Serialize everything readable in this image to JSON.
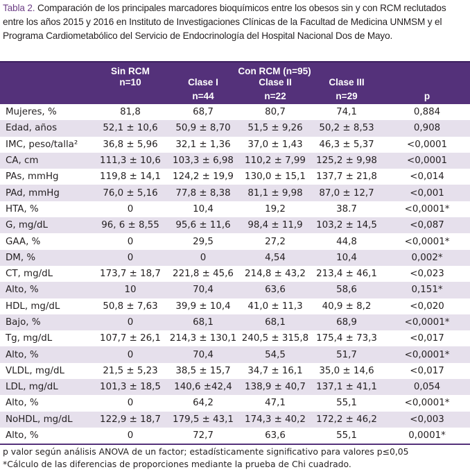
{
  "caption": {
    "label": "Tabla 2.",
    "text": " Comparación de los principales marcadores bioquímicos entre los obesos sin y con RCM reclutados entre los años 2015 y 2016 en Instituto de Investigaciones Clínicas de la Facultad de Medicina UNMSM y el Programa Cardiometabólico del Servicio de Endocrinología del Hospital Nacional Dos de Mayo."
  },
  "header": {
    "sin_rcm": "Sin RCM",
    "sin_rcm_n": "n=10",
    "con_rcm": "Con RCM (n=95)",
    "clase1": "Clase I",
    "clase1_n": "n=44",
    "clase2": "Clase II",
    "clase2_n": "n=22",
    "clase3": "Clase III",
    "clase3_n": "n=29",
    "p": "p"
  },
  "rows": [
    [
      "Mujeres, %",
      "81,8",
      "68,7",
      "80,7",
      "74,1",
      "0,884"
    ],
    [
      "Edad, años",
      "52,1 ± 10,6",
      "50,9 ± 8,70",
      "51,5 ± 9,26",
      "50,2 ± 8,53",
      "0,908"
    ],
    [
      "IMC, peso/talla²",
      "36,8 ± 5,96",
      "32,1 ± 1,36",
      "37,0 ± 1,43",
      "46,3 ± 5,37",
      "<0,0001"
    ],
    [
      "CA, cm",
      "111,3 ± 10,6",
      "103,3 ± 6,98",
      "110,2 ± 7,99",
      "125,2 ± 9,98",
      "<0,0001"
    ],
    [
      "PAs, mmHg",
      "119,8 ± 14,1",
      "124,2 ± 19,9",
      "130,0 ± 15,1",
      "137,7 ± 21,8",
      "<0,014"
    ],
    [
      "PAd, mmHg",
      "76,0 ± 5,16",
      "77,8 ± 8,38",
      "81,1 ± 9,98",
      "87,0 ± 12,7",
      "<0,001"
    ],
    [
      "HTA, %",
      "0",
      "10,4",
      "19,2",
      "38.7",
      "<0,0001*"
    ],
    [
      "G, mg/dL",
      "96, 6 ± 8,55",
      "95,6 ± 11,6",
      "98,4 ± 11,9",
      "103,2 ± 14,5",
      "<0,087"
    ],
    [
      "GAA, %",
      "0",
      "29,5",
      "27,2",
      "44,8",
      "<0,0001*"
    ],
    [
      "DM, %",
      "0",
      "0",
      "4,54",
      "10,4",
      "0,002*"
    ],
    [
      "CT, mg/dL",
      "173,7 ± 18,7",
      "221,8 ± 45,6",
      "214,8 ± 43,2",
      "213,4 ± 46,1",
      "<0,023"
    ],
    [
      "Alto, %",
      "10",
      "70,4",
      "63,6",
      "58,6",
      "0,151*"
    ],
    [
      "HDL, mg/dL",
      "50,8 ± 7,63",
      "39,9 ± 10,4",
      "41,0 ± 11,3",
      "40,9 ± 8,2",
      "<0,020"
    ],
    [
      "Bajo, %",
      "0",
      "68,1",
      "68,1",
      "68,9",
      "<0,0001*"
    ],
    [
      "Tg, mg/dL",
      "107,7 ± 26,1",
      "214,3 ± 130,1",
      "240,5 ± 315,8",
      "175,4 ± 73,3",
      "<0,017"
    ],
    [
      "Alto, %",
      "0",
      "70,4",
      "54,5",
      "51,7",
      "<0,0001*"
    ],
    [
      "VLDL, mg/dL",
      "21,5 ± 5,23",
      "38,5 ± 15,7",
      "34,7 ± 16,1",
      "35,0 ± 14,6",
      "<0,017"
    ],
    [
      "LDL, mg/dL",
      "101,3 ± 18,5",
      "140,6 ±42,4",
      "138,9 ± 40,7",
      "137,1 ± 41,1",
      "0,054"
    ],
    [
      "Alto, %",
      "0",
      "64,2",
      "47,1",
      "55,1",
      "<0,0001*"
    ],
    [
      "NoHDL, mg/dL",
      "122,9 ± 18,7",
      "179,5 ± 43,1",
      "174,3 ± 40,2",
      "172,2 ± 46,2",
      "<0,003"
    ],
    [
      "Alto, %",
      "0",
      "72,7",
      "63,6",
      "55,1",
      "0,0001*"
    ]
  ],
  "footnotes": [
    "p valor según análisis ANOVA de un factor; estadísticamente significativo para valores  p≤0,05",
    "*Cálculo de las diferencias de proporciones mediante la prueba de Chi cuadrado."
  ],
  "colors": {
    "header_bg": "#54317a",
    "stripe": "#e6e0ec",
    "label": "#6d3f86"
  }
}
